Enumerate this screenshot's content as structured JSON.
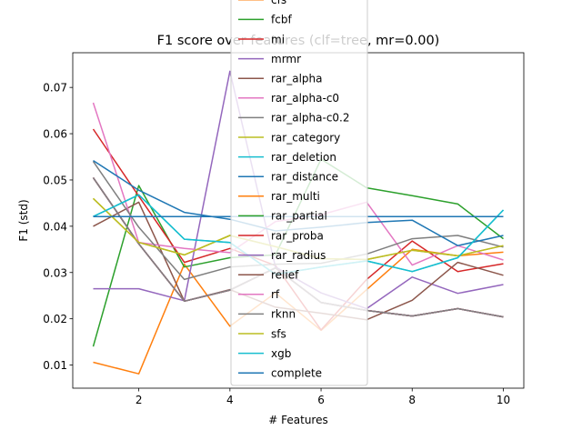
{
  "chart_data": {
    "type": "line",
    "title": "F1 score over features (clf=tree, mr=0.00)",
    "xlabel": "# Features",
    "ylabel": "F1 (std)",
    "xlim": [
      0.55,
      10.45
    ],
    "ylim": [
      0.005,
      0.0775
    ],
    "xticks": [
      2,
      4,
      6,
      8,
      10
    ],
    "yticks": [
      0.01,
      0.02,
      0.03,
      0.04,
      0.05,
      0.06,
      0.07
    ],
    "ytick_labels": [
      "0.01",
      "0.02",
      "0.03",
      "0.04",
      "0.05",
      "0.06",
      "0.07"
    ],
    "grid": false,
    "legend_position": "upper center",
    "x": [
      1,
      2,
      3,
      4,
      5,
      6,
      7,
      8,
      9,
      10
    ],
    "series": [
      {
        "name": "cfs",
        "color": "#ff7f0e",
        "values": [
          0.0106,
          0.0081,
          0.0318,
          0.0184,
          0.0256,
          0.0175,
          0.0263,
          0.035,
          0.0336,
          0.0344
        ]
      },
      {
        "name": "fcbf",
        "color": "#2ca02c",
        "values": [
          0.014,
          0.0488,
          0.0312,
          0.0332,
          0.0338,
          0.0545,
          0.0483,
          0.0466,
          0.0448,
          0.0373
        ]
      },
      {
        "name": "mi",
        "color": "#d62728",
        "values": [
          0.061,
          0.0465,
          0.0322,
          0.0352,
          0.0315,
          0.0176,
          0.0285,
          0.0368,
          0.0302,
          0.0319
        ]
      },
      {
        "name": "mrmr",
        "color": "#9467bd",
        "values": [
          0.0265,
          0.0265,
          0.0239,
          0.0735,
          0.0312,
          0.0256,
          0.0222,
          0.029,
          0.0255,
          0.0274
        ]
      },
      {
        "name": "rar_alpha",
        "color": "#8c564b",
        "values": [
          0.04,
          0.0452,
          0.0238,
          0.0263,
          0.0225,
          0.0212,
          0.0198,
          0.024,
          0.0322,
          0.0294
        ]
      },
      {
        "name": "rar_alpha-c0",
        "color": "#e377c2",
        "values": [
          0.0667,
          0.0365,
          0.0352,
          0.0343,
          0.041,
          0.0425,
          0.0452,
          0.0316,
          0.0358,
          0.0327
        ]
      },
      {
        "name": "rar_alpha-c0.2",
        "color": "#7f7f7f",
        "values": [
          0.054,
          0.0398,
          0.0285,
          0.0312,
          0.0318,
          0.032,
          0.034,
          0.0373,
          0.038,
          0.0355
        ]
      },
      {
        "name": "rar_category",
        "color": "#bcbd22",
        "values": [
          0.046,
          0.0365,
          0.0338,
          0.038,
          0.0356,
          0.033,
          0.0328,
          0.0348,
          0.0336,
          0.0358
        ]
      },
      {
        "name": "rar_deletion",
        "color": "#17becf",
        "values": [
          0.0421,
          0.0468,
          0.0372,
          0.0365,
          0.0296,
          0.0312,
          0.0325,
          0.0302,
          0.0332,
          0.0435
        ]
      },
      {
        "name": "rar_distance",
        "color": "#1f77b4",
        "values": [
          0.0542,
          0.0478,
          0.043,
          0.0415,
          0.039,
          0.0398,
          0.0408,
          0.0413,
          0.0358,
          0.038
        ]
      },
      {
        "name": "rar_multi",
        "color": "#ff7f0e",
        "values": [
          0.0505,
          0.0362,
          0.0238,
          0.0262,
          0.031,
          0.0235,
          0.0218,
          0.0206,
          0.0222,
          0.0204
        ]
      },
      {
        "name": "rar_partial",
        "color": "#2ca02c",
        "values": [
          0.0505,
          0.0362,
          0.0238,
          0.0262,
          0.031,
          0.0235,
          0.0218,
          0.0206,
          0.0222,
          0.0204
        ]
      },
      {
        "name": "rar_proba",
        "color": "#d62728",
        "values": [
          0.0505,
          0.0362,
          0.0238,
          0.0262,
          0.031,
          0.0235,
          0.0218,
          0.0206,
          0.0222,
          0.0204
        ]
      },
      {
        "name": "rar_radius",
        "color": "#9467bd",
        "values": [
          0.0505,
          0.0362,
          0.0238,
          0.0262,
          0.031,
          0.0235,
          0.0218,
          0.0206,
          0.0222,
          0.0204
        ]
      },
      {
        "name": "relief",
        "color": "#8c564b",
        "values": [
          0.0505,
          0.0362,
          0.0238,
          0.0262,
          0.031,
          0.0235,
          0.0218,
          0.0206,
          0.0222,
          0.0204
        ]
      },
      {
        "name": "rf",
        "color": "#e377c2",
        "values": [
          0.0505,
          0.0362,
          0.0238,
          0.0262,
          0.031,
          0.0235,
          0.0218,
          0.0206,
          0.0222,
          0.0204
        ]
      },
      {
        "name": "rknn",
        "color": "#7f7f7f",
        "values": [
          0.0505,
          0.0362,
          0.0238,
          0.0262,
          0.031,
          0.0235,
          0.0218,
          0.0206,
          0.0222,
          0.0204
        ]
      },
      {
        "name": "sfs",
        "color": "#bcbd22",
        "values": [
          0.046,
          0.0365,
          0.0338,
          0.038,
          0.0356,
          0.033,
          0.0328,
          0.0348,
          0.0336,
          0.0358
        ]
      },
      {
        "name": "xgb",
        "color": "#17becf",
        "values": [
          0.0421,
          0.0468,
          0.0372,
          0.0365,
          0.0296,
          0.0312,
          0.0325,
          0.0302,
          0.0332,
          0.0435
        ]
      },
      {
        "name": "complete",
        "color": "#1f77b4",
        "values": [
          0.0421,
          0.0421,
          0.0421,
          0.0421,
          0.0421,
          0.0421,
          0.0421,
          0.0421,
          0.0421,
          0.0421
        ]
      }
    ]
  }
}
